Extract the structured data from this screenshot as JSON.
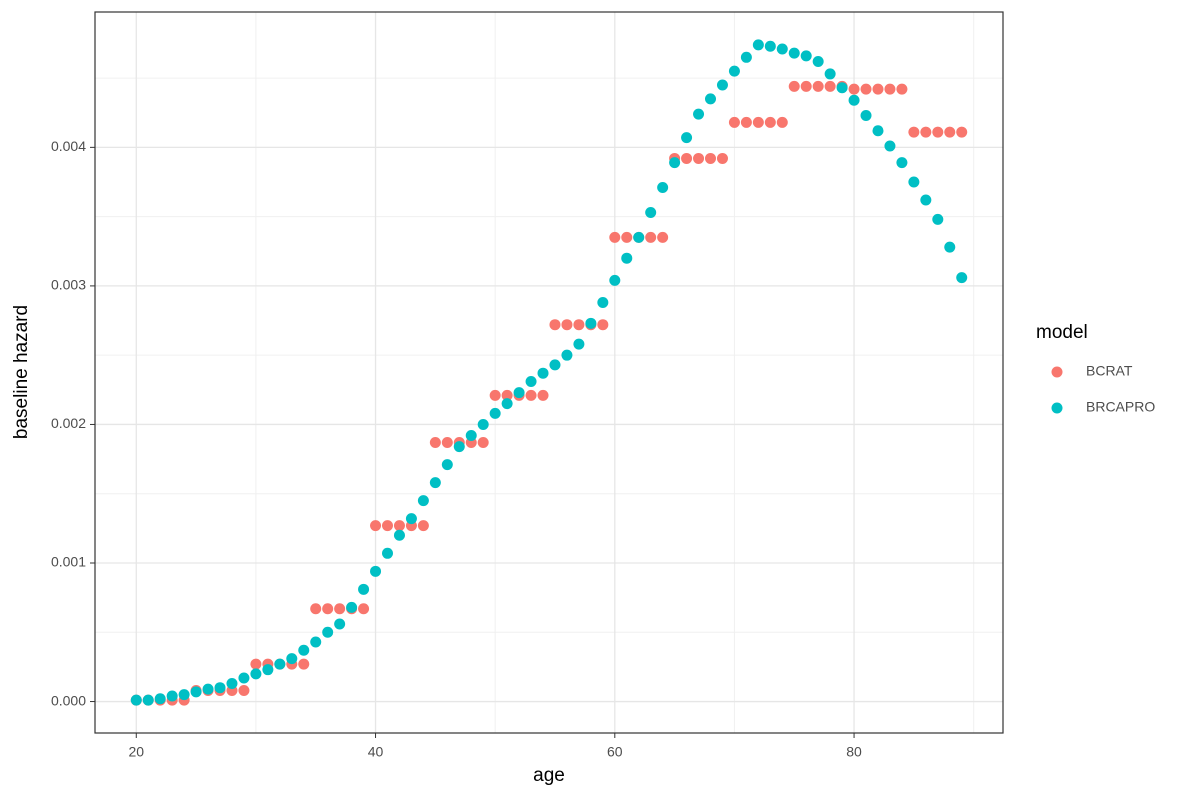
{
  "chart_data": {
    "type": "scatter",
    "x_label": "age",
    "y_label": "baseline hazard",
    "legend_title": "model",
    "legend_position": "right",
    "grid": true,
    "xlim": [
      16.55,
      92.45
    ],
    "xticks": [
      20,
      40,
      60,
      80
    ],
    "x_minor_ticks": [
      30,
      50,
      70,
      90
    ],
    "ylim": [
      -0.000227,
      0.004977
    ],
    "yticks": [
      {
        "value": 0,
        "label": "0.000"
      },
      {
        "value": 0.001,
        "label": "0.001"
      },
      {
        "value": 0.002,
        "label": "0.002"
      },
      {
        "value": 0.003,
        "label": "0.003"
      },
      {
        "value": 0.004,
        "label": "0.004"
      }
    ],
    "y_minor_ticks": [
      0.0005,
      0.0015,
      0.0025,
      0.0035,
      0.0045
    ],
    "x": [
      20,
      21,
      22,
      23,
      24,
      25,
      26,
      27,
      28,
      29,
      30,
      31,
      32,
      33,
      34,
      35,
      36,
      37,
      38,
      39,
      40,
      41,
      42,
      43,
      44,
      45,
      46,
      47,
      48,
      49,
      50,
      51,
      52,
      53,
      54,
      55,
      56,
      57,
      58,
      59,
      60,
      61,
      62,
      63,
      64,
      65,
      66,
      67,
      68,
      69,
      70,
      71,
      72,
      73,
      74,
      75,
      76,
      77,
      78,
      79,
      80,
      81,
      82,
      83,
      84,
      85,
      86,
      87,
      88,
      89
    ],
    "series": [
      {
        "name": "BCRAT",
        "color": "#F8766D",
        "values": [
          1e-05,
          1e-05,
          1e-05,
          1e-05,
          1e-05,
          8e-05,
          8e-05,
          8e-05,
          8e-05,
          8e-05,
          0.00027,
          0.00027,
          0.00027,
          0.00027,
          0.00027,
          0.00067,
          0.00067,
          0.00067,
          0.00067,
          0.00067,
          0.00127,
          0.00127,
          0.00127,
          0.00127,
          0.00127,
          0.00187,
          0.00187,
          0.00187,
          0.00187,
          0.00187,
          0.00221,
          0.00221,
          0.00221,
          0.00221,
          0.00221,
          0.00272,
          0.00272,
          0.00272,
          0.00272,
          0.00272,
          0.00335,
          0.00335,
          0.00335,
          0.00335,
          0.00335,
          0.00392,
          0.00392,
          0.00392,
          0.00392,
          0.00392,
          0.00418,
          0.00418,
          0.00418,
          0.00418,
          0.00418,
          0.00444,
          0.00444,
          0.00444,
          0.00444,
          0.00444,
          0.00442,
          0.00442,
          0.00442,
          0.00442,
          0.00442,
          0.00411,
          0.00411,
          0.00411,
          0.00411,
          0.00411
        ]
      },
      {
        "name": "BRCAPRO",
        "color": "#00BFC4",
        "values": [
          1e-05,
          1e-05,
          2e-05,
          4e-05,
          5e-05,
          7e-05,
          9e-05,
          0.0001,
          0.00013,
          0.00017,
          0.0002,
          0.00023,
          0.00027,
          0.00031,
          0.00037,
          0.00043,
          0.0005,
          0.00056,
          0.00068,
          0.00081,
          0.00094,
          0.00107,
          0.0012,
          0.00132,
          0.00145,
          0.00158,
          0.00171,
          0.00184,
          0.00192,
          0.002,
          0.00208,
          0.00215,
          0.00223,
          0.00231,
          0.00237,
          0.00243,
          0.0025,
          0.00258,
          0.00273,
          0.00288,
          0.00304,
          0.0032,
          0.00335,
          0.00353,
          0.00371,
          0.00389,
          0.00407,
          0.00424,
          0.00435,
          0.00445,
          0.00455,
          0.00465,
          0.00474,
          0.00473,
          0.00471,
          0.00468,
          0.00466,
          0.00462,
          0.00453,
          0.00443,
          0.00434,
          0.00423,
          0.00412,
          0.00401,
          0.00389,
          0.00375,
          0.00362,
          0.00348,
          0.00328,
          0.00306
        ]
      }
    ]
  }
}
